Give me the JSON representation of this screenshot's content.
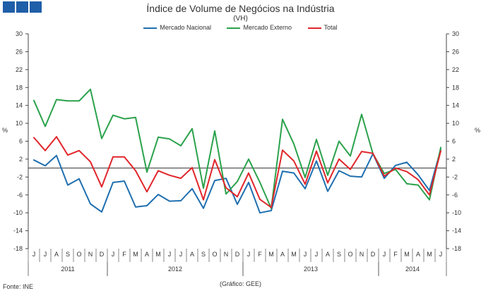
{
  "header": {
    "brand_colors": [
      "#1f5ea8",
      "#1f5ea8",
      "#1f5ea8"
    ]
  },
  "chart_data": {
    "type": "line",
    "title": "Índice de Volume de Negócios na Indústria",
    "subtitle": "(VH)",
    "ylabel_left": "%",
    "ylabel_right": "%",
    "ylim": [
      -18,
      30
    ],
    "yticks": [
      30,
      26,
      22,
      18,
      14,
      10,
      6,
      2,
      -2,
      -6,
      -10,
      -14,
      -18
    ],
    "categories": [
      "J",
      "J",
      "A",
      "S",
      "O",
      "N",
      "D",
      "J",
      "F",
      "M",
      "A",
      "M",
      "J",
      "J",
      "A",
      "S",
      "O",
      "N",
      "D",
      "J",
      "F",
      "M",
      "A",
      "M",
      "J",
      "J",
      "A",
      "S",
      "O",
      "N",
      "D",
      "J",
      "F",
      "M",
      "A",
      "M",
      "J"
    ],
    "year_groups": [
      {
        "label": "2011",
        "start": 0,
        "end": 6
      },
      {
        "label": "2012",
        "start": 7,
        "end": 18
      },
      {
        "label": "2013",
        "start": 19,
        "end": 30
      },
      {
        "label": "2014",
        "start": 31,
        "end": 36
      }
    ],
    "series": [
      {
        "name": "Mercado Nacional",
        "color": "#1f6fb0",
        "values": [
          1.8,
          0.5,
          2.8,
          -3.8,
          -2.4,
          -8,
          -9.8,
          -3.2,
          -2.9,
          -8.7,
          -8.4,
          -5.9,
          -7.4,
          -7.3,
          -4.6,
          -9,
          -2.8,
          -2.3,
          -8.1,
          -3.2,
          -10,
          -9.5,
          -0.7,
          -1.1,
          -4.6,
          1.6,
          -5.2,
          -0.6,
          -1.8,
          -2,
          3.2,
          -2.3,
          0.6,
          1.3,
          -1.5,
          -5,
          4.2
        ]
      },
      {
        "name": "Mercado Externo",
        "color": "#2ba24c",
        "values": [
          15.1,
          9.3,
          15.3,
          15,
          15,
          17.6,
          6.6,
          11.8,
          11,
          11.3,
          -0.9,
          6.9,
          6.5,
          5,
          8.8,
          -4.5,
          8.3,
          -5.8,
          -3,
          2,
          -3.2,
          -9,
          10.9,
          5.4,
          -2.1,
          6.4,
          -1.6,
          6,
          2.7,
          12,
          3.2,
          -1.2,
          -0.3,
          -3.5,
          -3.8,
          -7.1,
          4.6
        ]
      },
      {
        "name": "Total",
        "color": "#e0262b",
        "values": [
          6.8,
          3.9,
          7,
          2.9,
          3.9,
          1.4,
          -4.2,
          2.5,
          2.5,
          -0.6,
          -5.3,
          -0.6,
          -1.6,
          -2.3,
          0.1,
          -7.1,
          1.9,
          -4.4,
          -6.4,
          -1.1,
          -7,
          -8.8,
          4,
          1.6,
          -3.6,
          3.8,
          -3.3,
          2,
          -0.3,
          3.7,
          3.3,
          -1.8,
          0,
          -0.8,
          -2.6,
          -6,
          3.8
        ]
      }
    ]
  },
  "footer": {
    "source": "Fonte: INE",
    "credit": "(Gráfico: GEE)"
  }
}
